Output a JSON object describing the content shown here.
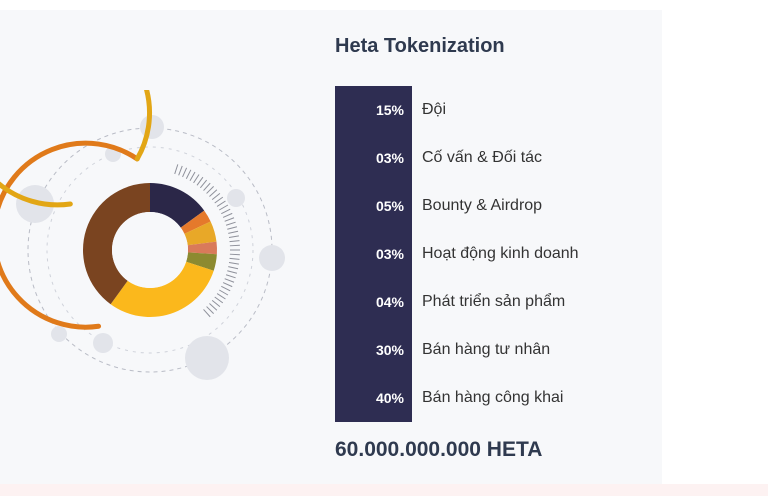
{
  "title": "Heta Tokenization",
  "total_supply": "60.000.000.000 HETA",
  "chart_data": {
    "type": "pie",
    "variant": "donut",
    "slices": [
      {
        "label": "Đội",
        "percent_text": "15%",
        "value": 15,
        "color": "#2b2748"
      },
      {
        "label": "Cố vấn & Đối tác",
        "percent_text": "03%",
        "value": 3,
        "color": "#e5792b"
      },
      {
        "label": "Bounty & Airdrop",
        "percent_text": "05%",
        "value": 5,
        "color": "#e8a828"
      },
      {
        "label": "Hoạt động kinh doanh",
        "percent_text": "03%",
        "value": 3,
        "color": "#d97a5a"
      },
      {
        "label": "Phát triển sản phẩm",
        "percent_text": "04%",
        "value": 4,
        "color": "#8c8a30"
      },
      {
        "label": "Bán hàng tư nhân",
        "percent_text": "30%",
        "value": 30,
        "color": "#fbb81c"
      },
      {
        "label": "Bán hàng công khai",
        "percent_text": "40%",
        "value": 40,
        "color": "#7a4420"
      }
    ]
  },
  "colors": {
    "accent_bar": "#2e2d52",
    "outer_arc_yellow": "#e2a615",
    "outer_arc_orange": "#e07a1a",
    "bubble": "#e2e4ea"
  }
}
